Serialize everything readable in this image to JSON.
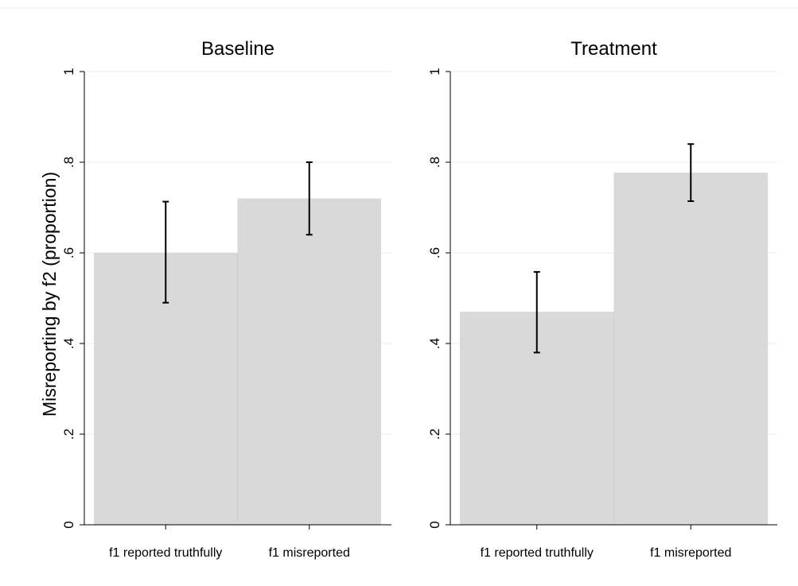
{
  "chart_data": [
    {
      "type": "bar",
      "title": "Baseline",
      "ylabel": "Misreporting  by f2 (proportion)",
      "xlabel": "",
      "categories": [
        "f1 reported truthfully",
        "f1 misreported"
      ],
      "values": [
        0.6,
        0.72
      ],
      "error_low": [
        0.49,
        0.64
      ],
      "error_high": [
        0.713,
        0.8
      ],
      "ylim": [
        0,
        1
      ],
      "yticks": [
        0,
        0.2,
        0.4,
        0.6,
        0.8,
        1
      ],
      "ytick_labels": [
        "0",
        ".2",
        ".4",
        ".6",
        ".8",
        "1"
      ],
      "grid": true,
      "bar_color": "#d9d9d9",
      "error_color": "#000000"
    },
    {
      "type": "bar",
      "title": "Treatment",
      "ylabel": "",
      "xlabel": "",
      "categories": [
        "f1 reported truthfully",
        "f1 misreported"
      ],
      "values": [
        0.47,
        0.777
      ],
      "error_low": [
        0.38,
        0.714
      ],
      "error_high": [
        0.558,
        0.84
      ],
      "ylim": [
        0,
        1
      ],
      "yticks": [
        0,
        0.2,
        0.4,
        0.6,
        0.8,
        1
      ],
      "ytick_labels": [
        "0",
        ".2",
        ".4",
        ".6",
        ".8",
        "1"
      ],
      "grid": true,
      "bar_color": "#d9d9d9",
      "error_color": "#000000"
    }
  ]
}
